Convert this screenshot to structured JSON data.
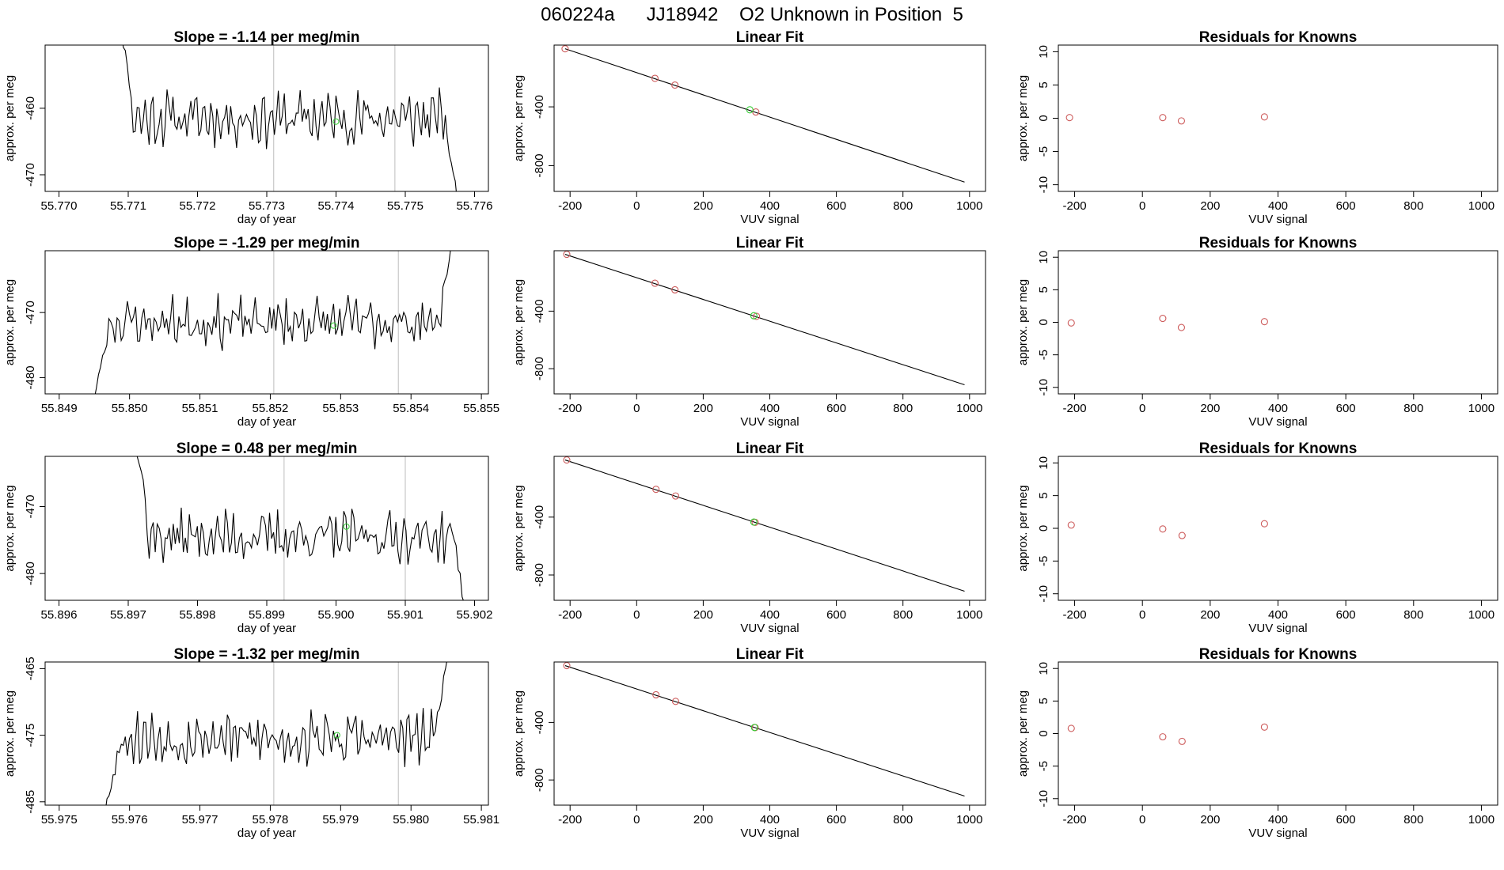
{
  "figure_title": "060224a      JJ18942    O2 Unknown in Position  5",
  "colors": {
    "line": "#000000",
    "known_point": "#cd5c5c",
    "unknown_point": "#32cd32",
    "marker_line": "#bdbdbd",
    "axis": "#000000"
  },
  "chart_data": [
    {
      "type": "line",
      "panel": "time-series-row-1",
      "title": "Slope =  -1.14  per meg/min",
      "xlabel": "day of year",
      "ylabel": "approx. per meg",
      "xlim": [
        55.7698,
        55.7762
      ],
      "ylim": [
        -472.5,
        -450.5
      ],
      "x_ticks": [
        "55.770",
        "55.771",
        "55.772",
        "55.773",
        "55.774",
        "55.775",
        "55.776"
      ],
      "y_ticks": [
        "-460",
        "-470"
      ],
      "vertical_lines_x": [
        55.7731,
        55.77485
      ],
      "series": [
        {
          "x_start": 55.7709,
          "x_end": 55.77575,
          "samples": 170,
          "baseline": -461.5,
          "amplitude": 3.2,
          "lead_in": [
            -448,
            -458
          ],
          "lead_out": [
            -464,
            -473
          ],
          "seed": 11
        }
      ],
      "unknown_point": {
        "x": 55.774,
        "y": -462
      }
    },
    {
      "type": "scatter",
      "panel": "linear-fit-row-1",
      "title": "Linear Fit",
      "xlabel": "VUV signal",
      "ylabel": "approx. per meg",
      "xlim": [
        -248,
        1048
      ],
      "ylim": [
        -975,
        20
      ],
      "x_ticks": [
        "-200",
        "0",
        "200",
        "400",
        "600",
        "800",
        "1000"
      ],
      "y_ticks": [
        "-400",
        "-800"
      ],
      "fit_line": {
        "x": [
          -215,
          985
        ],
        "y": [
          -5,
          -912
        ]
      },
      "knowns": [
        {
          "x": -215,
          "y": -5
        },
        {
          "x": 55,
          "y": -206
        },
        {
          "x": 115,
          "y": -252
        },
        {
          "x": 358,
          "y": -435
        }
      ],
      "unknown": {
        "x": 340,
        "y": -420
      }
    },
    {
      "type": "scatter",
      "panel": "residuals-row-1",
      "title": "Residuals for Knowns",
      "xlabel": "VUV signal",
      "ylabel": "approx. per meg",
      "xlim": [
        -248,
        1048
      ],
      "ylim": [
        -11,
        11
      ],
      "x_ticks": [
        "-200",
        "0",
        "200",
        "400",
        "600",
        "800",
        "1000"
      ],
      "y_ticks": [
        "10",
        "5",
        "0",
        "-5",
        "-10"
      ],
      "points": [
        {
          "x": -215,
          "y": 0.1
        },
        {
          "x": 60,
          "y": 0.1
        },
        {
          "x": 115,
          "y": -0.4
        },
        {
          "x": 360,
          "y": 0.2
        }
      ]
    },
    {
      "type": "line",
      "panel": "time-series-row-2",
      "title": "Slope =  -1.29  per meg/min",
      "xlabel": "day of year",
      "ylabel": "approx. per meg",
      "xlim": [
        55.8488,
        55.8551
      ],
      "ylim": [
        -482.5,
        -460.5
      ],
      "x_ticks": [
        "55.849",
        "55.850",
        "55.851",
        "55.852",
        "55.853",
        "55.854",
        "55.855"
      ],
      "y_ticks": [
        "-470",
        "-480"
      ],
      "vertical_lines_x": [
        55.85205,
        55.85382
      ],
      "series": [
        {
          "x_start": 55.8495,
          "x_end": 55.8546,
          "samples": 175,
          "baseline": -471.5,
          "amplitude": 3.0,
          "lead_in": [
            -483,
            -476
          ],
          "lead_out": [
            -468,
            -459
          ],
          "seed": 23
        }
      ],
      "unknown_point": {
        "x": 55.8529,
        "y": -472
      }
    },
    {
      "type": "scatter",
      "panel": "linear-fit-row-2",
      "title": "Linear Fit",
      "xlabel": "VUV signal",
      "ylabel": "approx. per meg",
      "xlim": [
        -248,
        1048
      ],
      "ylim": [
        -975,
        20
      ],
      "x_ticks": [
        "-200",
        "0",
        "200",
        "400",
        "600",
        "800",
        "1000"
      ],
      "y_ticks": [
        "-400",
        "-800"
      ],
      "fit_line": {
        "x": [
          -215,
          985
        ],
        "y": [
          -5,
          -912
        ]
      },
      "knowns": [
        {
          "x": -210,
          "y": -5
        },
        {
          "x": 55,
          "y": -206
        },
        {
          "x": 115,
          "y": -252
        },
        {
          "x": 360,
          "y": -436
        }
      ],
      "unknown": {
        "x": 352,
        "y": -432
      }
    },
    {
      "type": "scatter",
      "panel": "residuals-row-2",
      "title": "Residuals for Knowns",
      "xlabel": "VUV signal",
      "ylabel": "approx. per meg",
      "xlim": [
        -248,
        1048
      ],
      "ylim": [
        -11,
        11
      ],
      "x_ticks": [
        "-200",
        "0",
        "200",
        "400",
        "600",
        "800",
        "1000"
      ],
      "y_ticks": [
        "10",
        "5",
        "0",
        "-5",
        "-10"
      ],
      "points": [
        {
          "x": -210,
          "y": -0.1
        },
        {
          "x": 60,
          "y": 0.6
        },
        {
          "x": 115,
          "y": -0.8
        },
        {
          "x": 360,
          "y": 0.1
        }
      ]
    },
    {
      "type": "line",
      "panel": "time-series-row-3",
      "title": "Slope =  0.48  per meg/min",
      "xlabel": "day of year",
      "ylabel": "approx. per meg",
      "xlim": [
        55.8958,
        55.9022
      ],
      "ylim": [
        -484,
        -462.5
      ],
      "x_ticks": [
        "55.896",
        "55.897",
        "55.898",
        "55.899",
        "55.900",
        "55.901",
        "55.902"
      ],
      "y_ticks": [
        "-470",
        "-480"
      ],
      "vertical_lines_x": [
        55.89925,
        55.901
      ],
      "series": [
        {
          "x_start": 55.8971,
          "x_end": 55.90185,
          "samples": 165,
          "baseline": -474.5,
          "amplitude": 3.0,
          "lead_in": [
            -460,
            -468
          ],
          "lead_out": [
            -472,
            -485
          ],
          "seed": 37
        }
      ],
      "unknown_point": {
        "x": 55.90015,
        "y": -473
      }
    },
    {
      "type": "scatter",
      "panel": "linear-fit-row-3",
      "title": "Linear Fit",
      "xlabel": "VUV signal",
      "ylabel": "approx. per meg",
      "xlim": [
        -248,
        1048
      ],
      "ylim": [
        -975,
        20
      ],
      "x_ticks": [
        "-200",
        "0",
        "200",
        "400",
        "600",
        "800",
        "1000"
      ],
      "y_ticks": [
        "-400",
        "-800"
      ],
      "fit_line": {
        "x": [
          -215,
          985
        ],
        "y": [
          -5,
          -912
        ]
      },
      "knowns": [
        {
          "x": -210,
          "y": -5
        },
        {
          "x": 58,
          "y": -208
        },
        {
          "x": 117,
          "y": -254
        },
        {
          "x": 356,
          "y": -436
        }
      ],
      "unknown": {
        "x": 352,
        "y": -434
      }
    },
    {
      "type": "scatter",
      "panel": "residuals-row-3",
      "title": "Residuals for Knowns",
      "xlabel": "VUV signal",
      "ylabel": "approx. per meg",
      "xlim": [
        -248,
        1048
      ],
      "ylim": [
        -11,
        11
      ],
      "x_ticks": [
        "-200",
        "0",
        "200",
        "400",
        "600",
        "800",
        "1000"
      ],
      "y_ticks": [
        "10",
        "5",
        "0",
        "-5",
        "-10"
      ],
      "points": [
        {
          "x": -210,
          "y": 0.5
        },
        {
          "x": 60,
          "y": -0.1
        },
        {
          "x": 117,
          "y": -1.1
        },
        {
          "x": 360,
          "y": 0.7
        }
      ]
    },
    {
      "type": "line",
      "panel": "time-series-row-4",
      "title": "Slope =  -1.32  per meg/min",
      "xlabel": "day of year",
      "ylabel": "approx. per meg",
      "xlim": [
        55.9748,
        55.9811
      ],
      "ylim": [
        -485.5,
        -464
      ],
      "x_ticks": [
        "55.975",
        "55.976",
        "55.977",
        "55.978",
        "55.979",
        "55.980",
        "55.981"
      ],
      "y_ticks": [
        "-465",
        "-475",
        "-485"
      ],
      "vertical_lines_x": [
        55.97805,
        55.97982
      ],
      "series": [
        {
          "x_start": 55.97565,
          "x_end": 55.98055,
          "samples": 170,
          "baseline": -475.5,
          "amplitude": 3.2,
          "lead_in": [
            -486,
            -480
          ],
          "lead_out": [
            -472,
            -462
          ],
          "seed": 53
        }
      ],
      "unknown_point": {
        "x": 55.97895,
        "y": -475
      }
    },
    {
      "type": "scatter",
      "panel": "linear-fit-row-4",
      "title": "Linear Fit",
      "xlabel": "VUV signal",
      "ylabel": "approx. per meg",
      "xlim": [
        -248,
        1048
      ],
      "ylim": [
        -975,
        20
      ],
      "x_ticks": [
        "-200",
        "0",
        "200",
        "400",
        "600",
        "800",
        "1000"
      ],
      "y_ticks": [
        "-400",
        "-800"
      ],
      "fit_line": {
        "x": [
          -215,
          985
        ],
        "y": [
          -5,
          -912
        ]
      },
      "knowns": [
        {
          "x": -210,
          "y": -5
        },
        {
          "x": 58,
          "y": -208
        },
        {
          "x": 117,
          "y": -254
        },
        {
          "x": 356,
          "y": -436
        }
      ],
      "unknown": {
        "x": 354,
        "y": -435
      }
    },
    {
      "type": "scatter",
      "panel": "residuals-row-4",
      "title": "Residuals for Knowns",
      "xlabel": "VUV signal",
      "ylabel": "approx. per meg",
      "xlim": [
        -248,
        1048
      ],
      "ylim": [
        -11,
        11
      ],
      "x_ticks": [
        "-200",
        "0",
        "200",
        "400",
        "600",
        "800",
        "1000"
      ],
      "y_ticks": [
        "10",
        "5",
        "0",
        "-5",
        "-10"
      ],
      "points": [
        {
          "x": -210,
          "y": 0.8
        },
        {
          "x": 60,
          "y": -0.5
        },
        {
          "x": 117,
          "y": -1.2
        },
        {
          "x": 360,
          "y": 1.0
        }
      ]
    }
  ]
}
